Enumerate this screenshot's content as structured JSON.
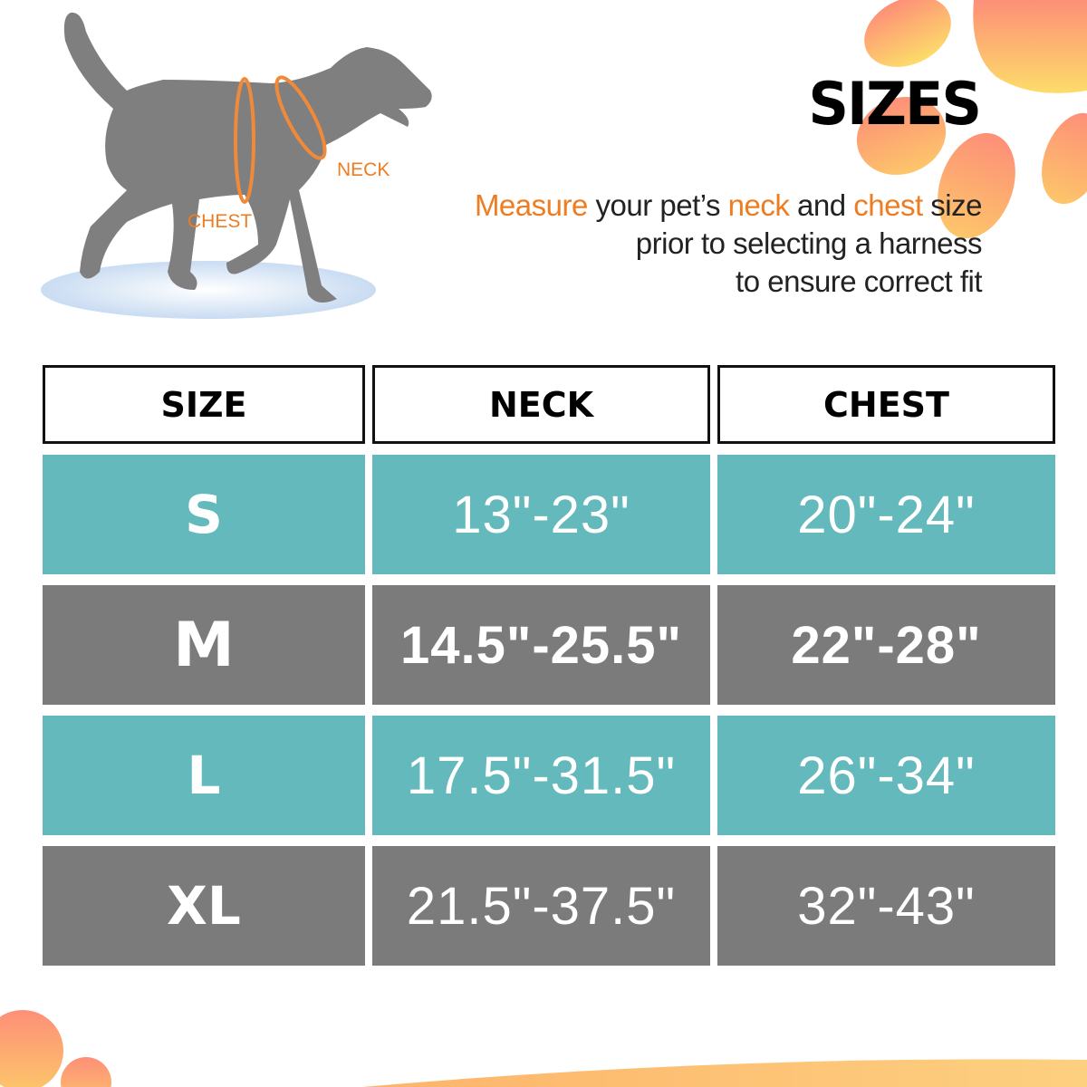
{
  "header": {
    "title": "SIZES",
    "tagline": {
      "w1": "Measure",
      "w2": " your pet’s ",
      "w3": "neck",
      "w4": " and ",
      "w5": "chest",
      "w6": " size",
      "line2": "prior to selecting a harness",
      "line3": "to ensure correct fit"
    }
  },
  "illustration": {
    "neck_label": "NECK",
    "chest_label": "CHEST",
    "icon": "dog-silhouette"
  },
  "table": {
    "columns": [
      "SIZE",
      "NECK",
      "CHEST"
    ],
    "rows": [
      {
        "size": "S",
        "neck": "13\"-23\"",
        "chest": "20\"-24\""
      },
      {
        "size": "M",
        "neck": "14.5\"-25.5\"",
        "chest": "22\"-28\""
      },
      {
        "size": "L",
        "neck": "17.5\"-31.5\"",
        "chest": "26\"-34\""
      },
      {
        "size": "XL",
        "neck": "21.5\"-37.5\"",
        "chest": "32\"-43\""
      }
    ]
  },
  "colors": {
    "accent": "#ee7d22",
    "teal": "#63b9bb",
    "gray": "#7b7b7b"
  }
}
